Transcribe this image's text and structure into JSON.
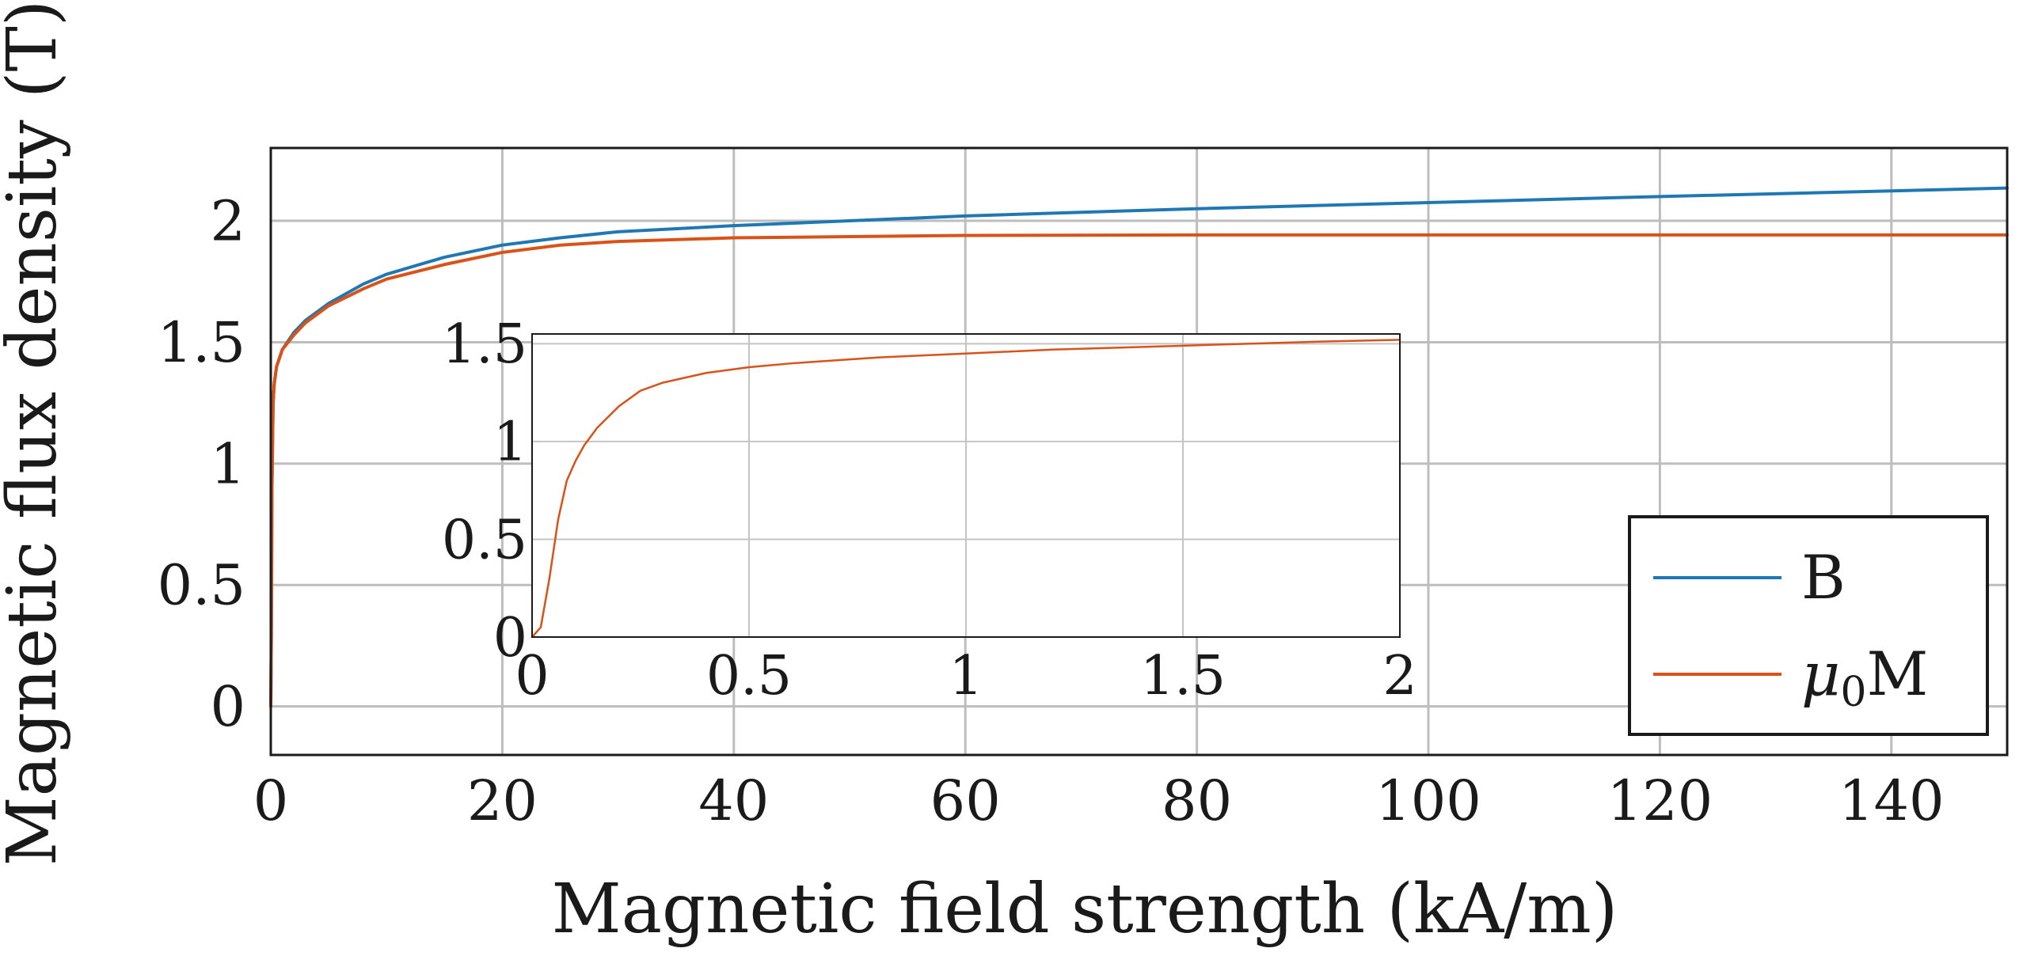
{
  "chart_data": [
    {
      "id": "main",
      "type": "line",
      "title": "",
      "xlabel": "Magnetic field strength (kA/m)",
      "ylabel": "Magnetic flux density (T)",
      "xlim": [
        0,
        150
      ],
      "ylim": [
        -0.2,
        2.3
      ],
      "xticks": [
        0,
        20,
        40,
        60,
        80,
        100,
        120,
        140
      ],
      "yticks": [
        0,
        0.5,
        1,
        1.5,
        2
      ],
      "xtick_labels": [
        "0",
        "20",
        "40",
        "60",
        "80",
        "100",
        "120",
        "140"
      ],
      "ytick_labels": [
        "0",
        "0.5",
        "1",
        "1.5",
        "2"
      ],
      "grid": true,
      "legend": {
        "position": "bottom-right",
        "entries": [
          {
            "label": "B",
            "color": "#1f77b4"
          },
          {
            "label_main": "μ",
            "label_sub": "0",
            "label_tail": "M",
            "color": "#d95319"
          }
        ]
      },
      "series": [
        {
          "name": "B",
          "color": "#1f77b4",
          "x": [
            0,
            0.05,
            0.1,
            0.2,
            0.3,
            0.5,
            1,
            2,
            3,
            5,
            8,
            10,
            15,
            20,
            25,
            30,
            40,
            50,
            60,
            80,
            100,
            120,
            150
          ],
          "y": [
            0,
            0.3,
            0.9,
            1.25,
            1.33,
            1.4,
            1.47,
            1.54,
            1.59,
            1.66,
            1.74,
            1.78,
            1.85,
            1.9,
            1.93,
            1.955,
            1.98,
            2.0,
            2.02,
            2.05,
            2.075,
            2.1,
            2.135
          ]
        },
        {
          "name": "μ0M",
          "color": "#d95319",
          "x": [
            0,
            0.05,
            0.1,
            0.2,
            0.3,
            0.5,
            1,
            2,
            3,
            5,
            8,
            10,
            15,
            20,
            25,
            30,
            40,
            50,
            60,
            80,
            100,
            120,
            150
          ],
          "y": [
            0,
            0.3,
            0.9,
            1.25,
            1.33,
            1.4,
            1.47,
            1.53,
            1.58,
            1.65,
            1.72,
            1.76,
            1.82,
            1.87,
            1.9,
            1.915,
            1.93,
            1.935,
            1.94,
            1.942,
            1.942,
            1.942,
            1.942
          ]
        }
      ]
    },
    {
      "id": "inset",
      "type": "line",
      "title": "",
      "xlabel": "",
      "ylabel": "",
      "xlim": [
        0,
        2
      ],
      "ylim": [
        0,
        1.55
      ],
      "xticks": [
        0,
        0.5,
        1,
        1.5,
        2
      ],
      "yticks": [
        0,
        0.5,
        1,
        1.5
      ],
      "xtick_labels": [
        "0",
        "0.5",
        "1",
        "1.5",
        "2"
      ],
      "ytick_labels": [
        "0",
        "0.5",
        "1",
        "1.5"
      ],
      "grid": true,
      "series": [
        {
          "name": "μ0M",
          "color": "#d95319",
          "x": [
            0,
            0.02,
            0.04,
            0.06,
            0.08,
            0.1,
            0.12,
            0.15,
            0.2,
            0.25,
            0.3,
            0.4,
            0.5,
            0.6,
            0.8,
            1.0,
            1.2,
            1.5,
            1.8,
            2.0
          ],
          "y": [
            0,
            0.05,
            0.3,
            0.6,
            0.8,
            0.9,
            0.98,
            1.07,
            1.18,
            1.26,
            1.3,
            1.35,
            1.38,
            1.4,
            1.43,
            1.45,
            1.47,
            1.49,
            1.51,
            1.52
          ]
        }
      ]
    }
  ]
}
